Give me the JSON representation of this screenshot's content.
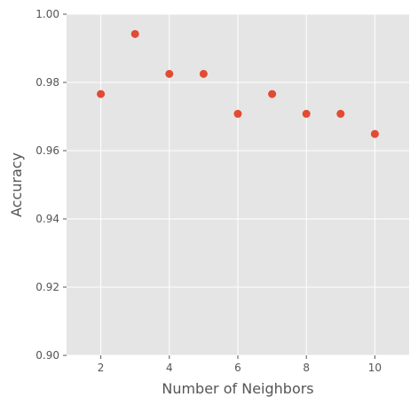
{
  "chart_data": {
    "type": "scatter",
    "title": "",
    "xlabel": "Number of Neighbors",
    "ylabel": "Accuracy",
    "x": [
      2,
      3,
      4,
      5,
      6,
      7,
      8,
      9,
      10
    ],
    "y": [
      0.9766,
      0.9942,
      0.9825,
      0.9825,
      0.9708,
      0.9766,
      0.9708,
      0.9708,
      0.9649
    ],
    "xlim": [
      1,
      11
    ],
    "ylim": [
      0.9,
      1.0
    ],
    "xticks": [
      2,
      4,
      6,
      8,
      10
    ],
    "xtick_labels": [
      "2",
      "4",
      "6",
      "8",
      "10"
    ],
    "yticks": [
      0.9,
      0.92,
      0.94,
      0.96,
      0.98,
      1.0
    ],
    "ytick_labels": [
      "0.90",
      "0.92",
      "0.94",
      "0.96",
      "0.98",
      "1.00"
    ],
    "grid": true,
    "legend": "none",
    "marker_color": "#E24A33",
    "background_color": "#E5E5E5",
    "grid_color": "#FFFFFF"
  }
}
